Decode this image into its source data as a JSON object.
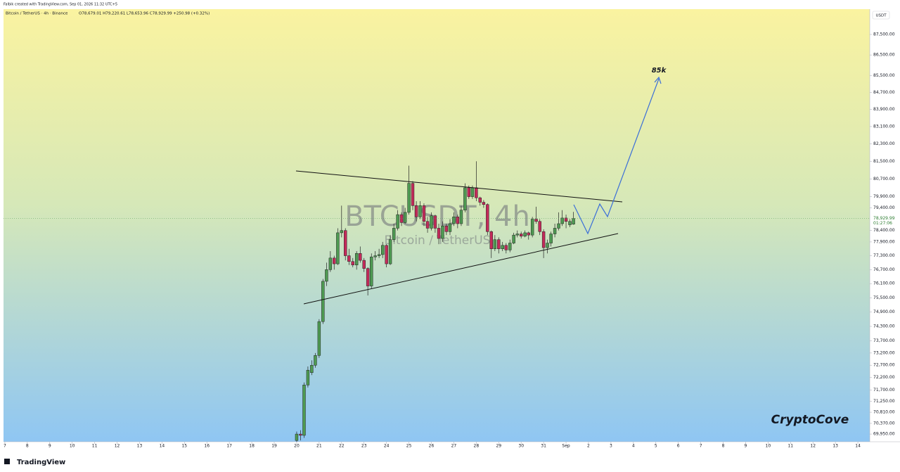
{
  "header": {
    "credit": "Falbik created with TradingView.com, Sep 01, 2026 11:32 UTC+5",
    "symbol_line": "Bitcoin / TetherUS · 4h · Binance",
    "ohlc_line": "O78,679.01 H79,220.61 L78,653.96 C78,929.99 +250.98 (+0.32%)"
  },
  "chart_data": {
    "type": "candlestick",
    "watermark": "BTCUSDT, 4h",
    "watermark_sub": "Bitcoin / TetherUS",
    "annotation": "85k",
    "brand": "CryptoCove",
    "currency": "USDT",
    "countdown": "01:27:06",
    "last_price": {
      "value": 78929.99,
      "label": "78,929.99"
    },
    "log_scale": true,
    "up_color": "#4e9a52",
    "down_color": "#c42a5a",
    "xlim": [
      -0.06,
      38.53
    ],
    "ylim": [
      69650,
      88750
    ],
    "xticks": [
      {
        "value": 0,
        "label": "7"
      },
      {
        "value": 1,
        "label": "8"
      },
      {
        "value": 2,
        "label": "9"
      },
      {
        "value": 3,
        "label": "10"
      },
      {
        "value": 4,
        "label": "11"
      },
      {
        "value": 5,
        "label": "12"
      },
      {
        "value": 6,
        "label": "13"
      },
      {
        "value": 7,
        "label": "14"
      },
      {
        "value": 8,
        "label": "15"
      },
      {
        "value": 9,
        "label": "16"
      },
      {
        "value": 10,
        "label": "17"
      },
      {
        "value": 11,
        "label": "18"
      },
      {
        "value": 12,
        "label": "19"
      },
      {
        "value": 13,
        "label": "20"
      },
      {
        "value": 14,
        "label": "21"
      },
      {
        "value": 15,
        "label": "22"
      },
      {
        "value": 16,
        "label": "23"
      },
      {
        "value": 17,
        "label": "24"
      },
      {
        "value": 18,
        "label": "25"
      },
      {
        "value": 19,
        "label": "26"
      },
      {
        "value": 20,
        "label": "27"
      },
      {
        "value": 21,
        "label": "28"
      },
      {
        "value": 22,
        "label": "29"
      },
      {
        "value": 23,
        "label": "30"
      },
      {
        "value": 24,
        "label": "31"
      },
      {
        "value": 25,
        "label": "Sep"
      },
      {
        "value": 26,
        "label": "2"
      },
      {
        "value": 27,
        "label": "3"
      },
      {
        "value": 28,
        "label": "4"
      },
      {
        "value": 29,
        "label": "5"
      },
      {
        "value": 30,
        "label": "6"
      },
      {
        "value": 31,
        "label": "7"
      },
      {
        "value": 32,
        "label": "8"
      },
      {
        "value": 33,
        "label": "9"
      },
      {
        "value": 34,
        "label": "10"
      },
      {
        "value": 35,
        "label": "11"
      },
      {
        "value": 36,
        "label": "12"
      },
      {
        "value": 37,
        "label": "13"
      },
      {
        "value": 38,
        "label": "14"
      }
    ],
    "yticks": [
      {
        "value": 87500,
        "label": "87,500.00"
      },
      {
        "value": 86500,
        "label": "86,500.00"
      },
      {
        "value": 85500,
        "label": "85,500.00"
      },
      {
        "value": 84700,
        "label": "84,700.00"
      },
      {
        "value": 83900,
        "label": "83,900.00"
      },
      {
        "value": 83100,
        "label": "83,100.00"
      },
      {
        "value": 82300,
        "label": "82,300.00"
      },
      {
        "value": 81500,
        "label": "81,500.00"
      },
      {
        "value": 80700,
        "label": "80,700.00"
      },
      {
        "value": 79900,
        "label": "79,900.00"
      },
      {
        "value": 79400,
        "label": "79,400.00"
      },
      {
        "value": 78400,
        "label": "78,400.00"
      },
      {
        "value": 77900,
        "label": "77,900.00"
      },
      {
        "value": 77300,
        "label": "77,300.00"
      },
      {
        "value": 76700,
        "label": "76,700.00"
      },
      {
        "value": 76100,
        "label": "76,100.00"
      },
      {
        "value": 75500,
        "label": "75,500.00"
      },
      {
        "value": 74900,
        "label": "74,900.00"
      },
      {
        "value": 74300,
        "label": "74,300.00"
      },
      {
        "value": 73700,
        "label": "73,700.00"
      },
      {
        "value": 73200,
        "label": "73,200.00"
      },
      {
        "value": 72700,
        "label": "72,700.00"
      },
      {
        "value": 72200,
        "label": "72,200.00"
      },
      {
        "value": 71700,
        "label": "71,700.00"
      },
      {
        "value": 71250,
        "label": "71,250.00"
      },
      {
        "value": 70810,
        "label": "70,810.00"
      },
      {
        "value": 70370,
        "label": "70,370.00"
      },
      {
        "value": 69950,
        "label": "69,950.00"
      }
    ],
    "x": [
      13,
      13.17,
      13.33,
      13.5,
      13.67,
      13.83,
      14,
      14.17,
      14.33,
      14.5,
      14.67,
      14.83,
      15,
      15.17,
      15.33,
      15.5,
      15.67,
      15.83,
      16,
      16.17,
      16.33,
      16.5,
      16.67,
      16.83,
      17,
      17.17,
      17.33,
      17.5,
      17.67,
      17.83,
      18,
      18.17,
      18.33,
      18.5,
      18.67,
      18.83,
      19,
      19.17,
      19.33,
      19.5,
      19.67,
      19.83,
      20,
      20.17,
      20.33,
      20.5,
      20.67,
      20.83,
      21,
      21.17,
      21.33,
      21.5,
      21.67,
      21.83,
      22,
      22.17,
      22.33,
      22.5,
      22.67,
      22.83,
      23,
      23.17,
      23.33,
      23.5,
      23.67,
      23.83,
      24,
      24.17,
      24.33,
      24.5,
      24.67,
      24.83,
      25,
      25.17,
      25.33
    ],
    "open": [
      69700,
      69950,
      69900,
      71900,
      72400,
      72700,
      73100,
      74500,
      76200,
      76700,
      77200,
      76950,
      78300,
      78400,
      77300,
      77050,
      76900,
      77400,
      77100,
      76750,
      76000,
      77250,
      77300,
      77350,
      77750,
      76950,
      78000,
      78500,
      79100,
      78750,
      79200,
      80500,
      79500,
      79000,
      79500,
      78800,
      78500,
      79050,
      78500,
      78050,
      78600,
      78350,
      78700,
      79000,
      78700,
      79300,
      80300,
      79900,
      80300,
      79850,
      79650,
      79550,
      78350,
      77600,
      78000,
      77600,
      77750,
      77550,
      77850,
      78200,
      78250,
      78150,
      78300,
      78200,
      78900,
      78800,
      78350,
      77650,
      77850,
      78250,
      78500,
      78700,
      78950,
      78650,
      78679.01
    ],
    "high": [
      70050,
      70100,
      72000,
      72650,
      72900,
      73200,
      74600,
      76300,
      77000,
      77500,
      77300,
      78500,
      79500,
      78500,
      77600,
      77200,
      77500,
      77700,
      77200,
      76800,
      77400,
      77500,
      77600,
      77900,
      77800,
      78200,
      78700,
      79300,
      79200,
      79400,
      81300,
      80600,
      79700,
      79700,
      79600,
      79000,
      79200,
      79100,
      78700,
      78800,
      78700,
      78900,
      79200,
      79100,
      79500,
      80500,
      80400,
      80400,
      81500,
      79900,
      79750,
      79600,
      78400,
      78200,
      78100,
      77900,
      77850,
      78000,
      78300,
      78400,
      78350,
      78400,
      78350,
      79000,
      79450,
      78900,
      78450,
      78000,
      78350,
      78700,
      79200,
      79300,
      79100,
      78900,
      79220.61
    ],
    "low": [
      69600,
      69700,
      69800,
      71800,
      72300,
      72600,
      73000,
      74400,
      76000,
      76600,
      76700,
      76900,
      78100,
      77100,
      76900,
      76800,
      76700,
      77000,
      76600,
      75600,
      75900,
      77100,
      77200,
      77200,
      76800,
      76900,
      77900,
      78400,
      78600,
      78700,
      79100,
      79300,
      78800,
      78900,
      78600,
      78300,
      78400,
      78300,
      77800,
      77900,
      78200,
      78200,
      78600,
      78500,
      78600,
      79200,
      79800,
      79800,
      79700,
      79500,
      79400,
      78200,
      77200,
      77500,
      77400,
      77500,
      77400,
      77450,
      77800,
      78100,
      78050,
      78100,
      78000,
      78100,
      78700,
      78200,
      77200,
      77400,
      77700,
      78100,
      78400,
      78600,
      78500,
      78550,
      78653.96
    ],
    "close": [
      69950,
      69900,
      71900,
      72500,
      72700,
      73100,
      74500,
      76200,
      76700,
      77200,
      76950,
      78300,
      78400,
      77300,
      77050,
      76900,
      77400,
      77100,
      76750,
      76000,
      77250,
      77300,
      77350,
      77750,
      76950,
      78000,
      78500,
      79100,
      78750,
      79200,
      80500,
      79500,
      79000,
      79500,
      78800,
      78500,
      79050,
      78500,
      78050,
      78600,
      78350,
      78700,
      79000,
      78700,
      79300,
      80300,
      79900,
      80300,
      79850,
      79650,
      79550,
      78350,
      77600,
      78000,
      77600,
      77750,
      77550,
      77850,
      78200,
      78250,
      78150,
      78300,
      78200,
      78900,
      78800,
      78350,
      77650,
      77850,
      78250,
      78500,
      78700,
      78950,
      78800,
      78800,
      78929.99
    ]
  }
}
